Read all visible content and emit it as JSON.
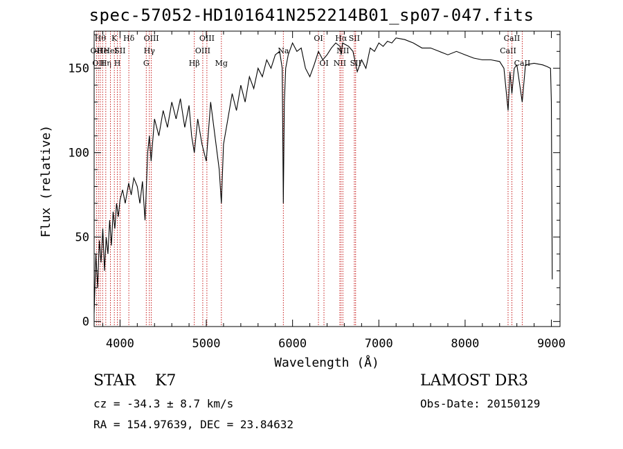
{
  "title": "spec-57052-HD101641N252214B01_sp07-047.fits",
  "info": {
    "object_class": "STAR",
    "subclass": "K7",
    "survey": "LAMOST DR3",
    "cz": "cz = -34.3 ± 8.7 km/s",
    "obs_date": "Obs-Date: 20150129",
    "coords": "RA = 154.97639, DEC =  23.84632"
  },
  "chart_data": {
    "type": "line",
    "xlabel": "Wavelength (Å)",
    "ylabel": "Flux (relative)",
    "xlim": [
      3700,
      9100
    ],
    "ylim": [
      -3,
      172
    ],
    "xticks": [
      4000,
      5000,
      6000,
      7000,
      8000,
      9000
    ],
    "yticks": [
      0,
      50,
      100,
      150
    ],
    "grid": false,
    "series": [
      {
        "color": "#000000",
        "x": [
          3700,
          3720,
          3740,
          3760,
          3780,
          3800,
          3820,
          3840,
          3860,
          3880,
          3900,
          3920,
          3940,
          3960,
          3980,
          4000,
          4030,
          4060,
          4100,
          4130,
          4160,
          4200,
          4230,
          4260,
          4290,
          4300,
          4320,
          4340,
          4360,
          4400,
          4450,
          4500,
          4550,
          4600,
          4650,
          4700,
          4750,
          4800,
          4830,
          4861,
          4900,
          4950,
          5000,
          5050,
          5100,
          5150,
          5175,
          5200,
          5250,
          5300,
          5350,
          5400,
          5450,
          5500,
          5550,
          5600,
          5650,
          5700,
          5750,
          5800,
          5850,
          5880,
          5893,
          5905,
          5920,
          5950,
          6000,
          6050,
          6100,
          6150,
          6200,
          6250,
          6300,
          6350,
          6400,
          6450,
          6500,
          6550,
          6563,
          6580,
          6650,
          6700,
          6750,
          6800,
          6850,
          6900,
          6950,
          7000,
          7050,
          7100,
          7150,
          7200,
          7300,
          7400,
          7500,
          7600,
          7700,
          7800,
          7900,
          8000,
          8100,
          8200,
          8300,
          8400,
          8450,
          8498,
          8520,
          8542,
          8570,
          8600,
          8662,
          8700,
          8800,
          8900,
          8950,
          8990,
          9000,
          9010
        ],
        "y": [
          5,
          40,
          20,
          48,
          35,
          55,
          30,
          50,
          40,
          60,
          45,
          65,
          55,
          70,
          62,
          72,
          78,
          70,
          82,
          75,
          85,
          80,
          70,
          83,
          60,
          72,
          100,
          110,
          95,
          120,
          110,
          125,
          115,
          130,
          120,
          132,
          115,
          128,
          110,
          100,
          120,
          105,
          95,
          130,
          110,
          90,
          70,
          105,
          120,
          135,
          125,
          140,
          130,
          145,
          138,
          150,
          145,
          155,
          150,
          158,
          160,
          150,
          70,
          130,
          150,
          158,
          165,
          160,
          162,
          150,
          145,
          152,
          160,
          155,
          158,
          162,
          165,
          163,
          158,
          165,
          163,
          160,
          148,
          155,
          150,
          162,
          160,
          165,
          163,
          166,
          165,
          168,
          167,
          165,
          162,
          162,
          160,
          158,
          160,
          158,
          156,
          155,
          155,
          154,
          150,
          125,
          148,
          135,
          150,
          152,
          130,
          152,
          153,
          152,
          151,
          150,
          130,
          25
        ]
      }
    ],
    "line_markers": [
      {
        "wavelength": 3727,
        "label": "OII",
        "row": 1
      },
      {
        "wavelength": 3750,
        "label": "OII",
        "row": 2
      },
      {
        "wavelength": 3771,
        "label": "Hθ",
        "row": 0
      },
      {
        "wavelength": 3798,
        "label": "He",
        "row": 1
      },
      {
        "wavelength": 3835,
        "label": "Hη",
        "row": 2
      },
      {
        "wavelength": 3889,
        "label": "HeI",
        "row": 1
      },
      {
        "wavelength": 3934,
        "label": "K",
        "row": 0
      },
      {
        "wavelength": 3969,
        "label": "H",
        "row": 2
      },
      {
        "wavelength": 4000,
        "label": "SII",
        "row": 1
      },
      {
        "wavelength": 4102,
        "label": "Hδ",
        "row": 0
      },
      {
        "wavelength": 4304,
        "label": "G",
        "row": 2
      },
      {
        "wavelength": 4340,
        "label": "Hγ",
        "row": 1
      },
      {
        "wavelength": 4363,
        "label": "OIII",
        "row": 0
      },
      {
        "wavelength": 4861,
        "label": "Hβ",
        "row": 2
      },
      {
        "wavelength": 4959,
        "label": "OIII",
        "row": 1
      },
      {
        "wavelength": 5007,
        "label": "OIII",
        "row": 0
      },
      {
        "wavelength": 5175,
        "label": "Mg",
        "row": 2
      },
      {
        "wavelength": 5893,
        "label": "Na",
        "row": 1
      },
      {
        "wavelength": 6300,
        "label": "OI",
        "row": 0
      },
      {
        "wavelength": 6364,
        "label": "OI",
        "row": 2
      },
      {
        "wavelength": 6548,
        "label": "NII",
        "row": 2
      },
      {
        "wavelength": 6563,
        "label": "Hα",
        "row": 0
      },
      {
        "wavelength": 6583,
        "label": "NII",
        "row": 1
      },
      {
        "wavelength": 6716,
        "label": "SII",
        "row": 0
      },
      {
        "wavelength": 6731,
        "label": "SII",
        "row": 2
      },
      {
        "wavelength": 8498,
        "label": "CaII",
        "row": 1
      },
      {
        "wavelength": 8542,
        "label": "CaII",
        "row": 0
      },
      {
        "wavelength": 8662,
        "label": "CaII",
        "row": 2
      }
    ]
  }
}
